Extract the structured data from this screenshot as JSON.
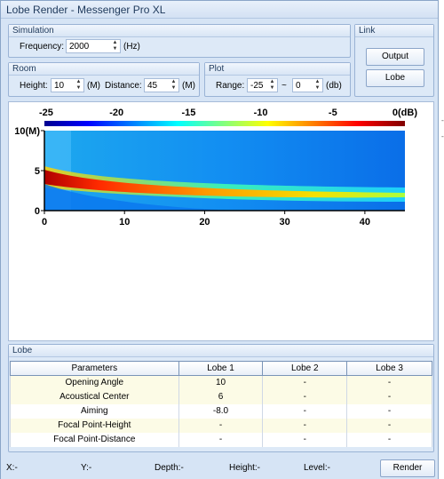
{
  "window": {
    "title": "Lobe Render - Messenger Pro XL"
  },
  "simulation": {
    "title": "Simulation",
    "frequency_label": "Frequency:",
    "frequency_value": "2000",
    "frequency_unit": "(Hz)"
  },
  "link": {
    "title": "Link",
    "output_label": "Output",
    "lobe_label": "Lobe"
  },
  "room": {
    "title": "Room",
    "height_label": "Height:",
    "height_value": "10",
    "height_unit": "(M)",
    "distance_label": "Distance:",
    "distance_value": "45",
    "distance_unit": "(M)"
  },
  "plot": {
    "title": "Plot",
    "range_label": "Range:",
    "range_min": "-25",
    "range_sep": "~",
    "range_max": "0",
    "range_unit": "(db)"
  },
  "chart_data": {
    "type": "heatmap",
    "colorbar_ticks": [
      "-25",
      "-20",
      "-15",
      "-10",
      "-5",
      "0(dB)"
    ],
    "y_ticks": [
      "10(M)",
      "5",
      "0"
    ],
    "x_ticks": [
      "0",
      "10",
      "20",
      "30",
      "40"
    ],
    "xlim": [
      0,
      45
    ],
    "ylim": [
      0,
      10
    ],
    "zlim": [
      -25,
      0
    ],
    "colors": [
      "#00008f",
      "#0000ff",
      "#00ffff",
      "#ffff00",
      "#ff0000",
      "#800000"
    ]
  },
  "lobe": {
    "title": "Lobe",
    "headers": [
      "Parameters",
      "Lobe 1",
      "Lobe 2",
      "Lobe 3"
    ],
    "rows": [
      [
        "Opening Angle",
        "10",
        "-",
        "-"
      ],
      [
        "Acoustical Center",
        "6",
        "-",
        "-"
      ],
      [
        "Aiming",
        "-8.0",
        "-",
        "-"
      ],
      [
        "Focal Point-Height",
        "-",
        "-",
        "-"
      ],
      [
        "Focal Point-Distance",
        "-",
        "-",
        "-"
      ]
    ]
  },
  "status": {
    "x": "X:-",
    "y": "Y:-",
    "depth": "Depth:-",
    "height": "Height:-",
    "level": "Level:-",
    "render_label": "Render"
  }
}
